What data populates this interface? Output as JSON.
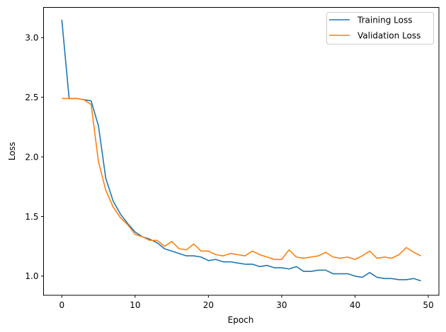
{
  "chart_data": {
    "type": "line",
    "title": "",
    "xlabel": "Epoch",
    "ylabel": "Loss",
    "xlim": [
      -2.5,
      51.5
    ],
    "ylim": [
      0.85,
      3.24
    ],
    "grid": false,
    "legend_position": "upper right",
    "x_ticks": [
      0,
      10,
      20,
      30,
      40,
      50
    ],
    "x_tick_labels": [
      "0",
      "10",
      "20",
      "30",
      "40",
      "50"
    ],
    "y_ticks": [
      1.0,
      1.5,
      2.0,
      2.5,
      3.0
    ],
    "y_tick_labels": [
      "1.0",
      "1.5",
      "2.0",
      "2.5",
      "3.0"
    ],
    "x": [
      0,
      1,
      2,
      3,
      4,
      5,
      6,
      7,
      8,
      9,
      10,
      11,
      12,
      13,
      14,
      15,
      16,
      17,
      18,
      19,
      20,
      21,
      22,
      23,
      24,
      25,
      26,
      27,
      28,
      29,
      30,
      31,
      32,
      33,
      34,
      35,
      36,
      37,
      38,
      39,
      40,
      41,
      42,
      43,
      44,
      45,
      46,
      47,
      48,
      49
    ],
    "series": [
      {
        "name": "Training Loss",
        "color": "#1f77b4",
        "values": [
          3.15,
          2.49,
          2.49,
          2.48,
          2.47,
          2.26,
          1.82,
          1.63,
          1.52,
          1.44,
          1.37,
          1.33,
          1.31,
          1.28,
          1.23,
          1.21,
          1.19,
          1.17,
          1.17,
          1.16,
          1.13,
          1.14,
          1.12,
          1.12,
          1.11,
          1.1,
          1.1,
          1.08,
          1.09,
          1.07,
          1.07,
          1.06,
          1.08,
          1.04,
          1.04,
          1.05,
          1.05,
          1.02,
          1.02,
          1.02,
          1.0,
          0.99,
          1.03,
          0.99,
          0.98,
          0.98,
          0.97,
          0.97,
          0.98,
          0.96
        ]
      },
      {
        "name": "Validation Loss",
        "color": "#ff7f0e",
        "values": [
          2.49,
          2.49,
          2.49,
          2.48,
          2.44,
          1.96,
          1.72,
          1.58,
          1.49,
          1.43,
          1.35,
          1.33,
          1.3,
          1.3,
          1.25,
          1.29,
          1.23,
          1.22,
          1.27,
          1.21,
          1.21,
          1.18,
          1.17,
          1.19,
          1.18,
          1.17,
          1.21,
          1.18,
          1.16,
          1.14,
          1.14,
          1.22,
          1.16,
          1.15,
          1.16,
          1.17,
          1.2,
          1.16,
          1.15,
          1.16,
          1.14,
          1.17,
          1.21,
          1.15,
          1.16,
          1.15,
          1.18,
          1.24,
          1.2,
          1.17
        ]
      }
    ]
  },
  "legend": {
    "items": [
      {
        "label": "Training Loss",
        "color": "#1f77b4"
      },
      {
        "label": "Validation Loss",
        "color": "#ff7f0e"
      }
    ]
  }
}
